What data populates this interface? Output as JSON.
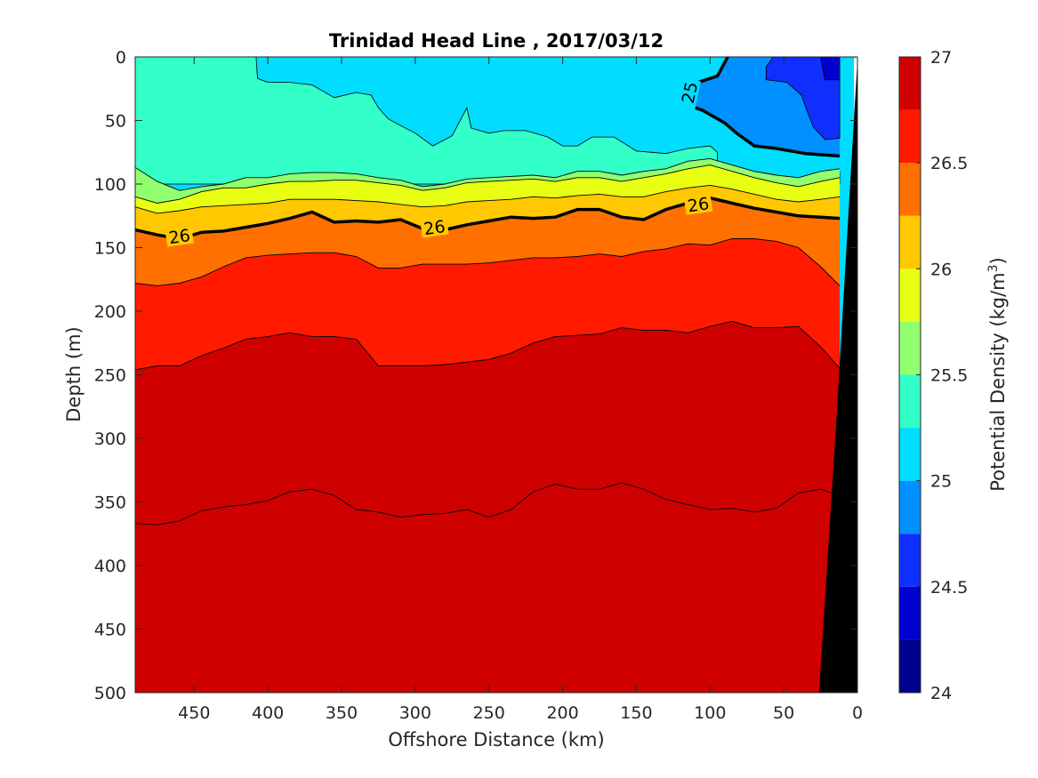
{
  "chart_data": {
    "type": "contour",
    "title": "Trinidad Head Line , 2017/03/12",
    "xlabel": "Offshore Distance (km)",
    "ylabel": "Depth (m)",
    "xlim": [
      490,
      0
    ],
    "ylim": [
      0,
      500
    ],
    "x_reversed": true,
    "y_reversed": true,
    "xticks": [
      450,
      400,
      350,
      300,
      250,
      200,
      150,
      100,
      50,
      0
    ],
    "yticks": [
      0,
      50,
      100,
      150,
      200,
      250,
      300,
      350,
      400,
      450,
      500
    ],
    "colorbar": {
      "label": "Potential Density (kg/m",
      "label_superscript": "3",
      "label_close": ")",
      "range": [
        24,
        27
      ],
      "ticks": [
        24,
        24.5,
        25,
        25.5,
        26,
        26.5,
        27
      ],
      "tick_labels": [
        "24",
        "24.5",
        "25",
        "25.5",
        "26",
        "26.5",
        "27"
      ],
      "levels": [
        {
          "from": 24.0,
          "to": 24.25,
          "color": "#00008f"
        },
        {
          "from": 24.25,
          "to": 24.5,
          "color": "#0000cf"
        },
        {
          "from": 24.5,
          "to": 24.75,
          "color": "#0f2fff"
        },
        {
          "from": 24.75,
          "to": 25.0,
          "color": "#0090ff"
        },
        {
          "from": 25.0,
          "to": 25.25,
          "color": "#00ddff"
        },
        {
          "from": 25.25,
          "to": 25.5,
          "color": "#33ffc9"
        },
        {
          "from": 25.5,
          "to": 25.75,
          "color": "#90ff70"
        },
        {
          "from": 25.75,
          "to": 26.0,
          "color": "#e8ff14"
        },
        {
          "from": 26.0,
          "to": 26.25,
          "color": "#ffc800"
        },
        {
          "from": 26.25,
          "to": 26.5,
          "color": "#ff7000"
        },
        {
          "from": 26.5,
          "to": 26.75,
          "color": "#ff1a00"
        },
        {
          "from": 26.75,
          "to": 27.0,
          "color": "#cf0000"
        }
      ]
    },
    "isolines": [
      {
        "level": 25.25,
        "x": [
          490,
          475,
          460,
          445,
          430,
          415,
          400,
          385,
          370,
          355,
          340,
          325,
          310,
          295,
          280,
          265,
          250,
          235,
          220,
          205,
          190,
          175,
          160,
          145,
          130,
          115,
          100,
          85,
          70,
          55,
          40,
          25,
          12
        ],
        "y": [
          87,
          98,
          105,
          102,
          100,
          95,
          95,
          92,
          91,
          91,
          92,
          95,
          97,
          102,
          100,
          96,
          95,
          94,
          93,
          95,
          90,
          90,
          93,
          90,
          88,
          82,
          80,
          85,
          90,
          93,
          95,
          90,
          88
        ]
      },
      {
        "level": 25.5,
        "x": [
          490,
          475,
          460,
          445,
          430,
          415,
          400,
          385,
          370,
          355,
          340,
          325,
          310,
          295,
          280,
          265,
          250,
          235,
          220,
          205,
          190,
          175,
          160,
          145,
          130,
          115,
          100,
          85,
          70,
          55,
          40,
          25,
          12
        ],
        "y": [
          110,
          115,
          112,
          106,
          103,
          103,
          100,
          98,
          98,
          97,
          97,
          99,
          101,
          105,
          103,
          99,
          98,
          97,
          96,
          98,
          95,
          95,
          98,
          95,
          92,
          88,
          85,
          90,
          95,
          99,
          102,
          98,
          95
        ]
      },
      {
        "level": 25.75,
        "x": [
          490,
          475,
          460,
          445,
          430,
          415,
          400,
          385,
          370,
          355,
          340,
          325,
          310,
          295,
          280,
          265,
          250,
          235,
          220,
          205,
          190,
          175,
          160,
          145,
          130,
          115,
          100,
          85,
          70,
          55,
          40,
          25,
          12
        ],
        "y": [
          118,
          123,
          121,
          118,
          117,
          116,
          115,
          112,
          112,
          112,
          113,
          114,
          116,
          118,
          117,
          114,
          113,
          112,
          110,
          111,
          109,
          108,
          110,
          110,
          106,
          103,
          101,
          104,
          108,
          112,
          114,
          112,
          110
        ]
      },
      {
        "level": 26.0,
        "x": [
          490,
          475,
          460,
          445,
          430,
          415,
          400,
          385,
          370,
          355,
          340,
          325,
          310,
          295,
          280,
          265,
          250,
          235,
          220,
          205,
          190,
          175,
          160,
          145,
          130,
          115,
          100,
          85,
          70,
          55,
          40,
          25,
          12
        ],
        "y": [
          136,
          140,
          143,
          138,
          137,
          134,
          131,
          127,
          122,
          130,
          129,
          130,
          128,
          135,
          136,
          132,
          129,
          126,
          127,
          126,
          120,
          120,
          126,
          128,
          120,
          115,
          111,
          115,
          119,
          122,
          125,
          126,
          127
        ]
      },
      {
        "level": 26.25,
        "x": [
          490,
          475,
          460,
          445,
          430,
          415,
          400,
          385,
          370,
          355,
          340,
          325,
          310,
          295,
          280,
          265,
          250,
          235,
          220,
          205,
          190,
          175,
          160,
          145,
          130,
          115,
          100,
          85,
          70,
          55,
          40,
          25,
          12
        ],
        "y": [
          178,
          180,
          178,
          173,
          165,
          158,
          156,
          155,
          154,
          154,
          157,
          166,
          166,
          163,
          163,
          163,
          162,
          160,
          158,
          158,
          157,
          155,
          157,
          153,
          151,
          147,
          148,
          143,
          143,
          145,
          150,
          165,
          180
        ]
      },
      {
        "level": 26.5,
        "x": [
          490,
          475,
          460,
          445,
          430,
          415,
          400,
          385,
          370,
          355,
          340,
          325,
          310,
          295,
          280,
          265,
          250,
          235,
          220,
          205,
          190,
          175,
          160,
          145,
          130,
          115,
          100,
          85,
          70,
          55,
          40,
          25,
          12
        ],
        "y": [
          246,
          243,
          243,
          235,
          229,
          222,
          220,
          217,
          220,
          220,
          222,
          243,
          243,
          243,
          242,
          240,
          238,
          233,
          225,
          220,
          219,
          218,
          213,
          215,
          215,
          217,
          212,
          208,
          213,
          213,
          212,
          228,
          245
        ]
      },
      {
        "level": 26.75,
        "x": [
          490,
          475,
          460,
          445,
          430,
          415,
          400,
          385,
          370,
          355,
          340,
          325,
          310,
          295,
          280,
          265,
          250,
          235,
          220,
          205,
          190,
          175,
          160,
          145,
          130,
          115,
          100,
          85,
          70,
          55,
          40,
          25,
          12
        ],
        "y": [
          367,
          368,
          365,
          357,
          354,
          352,
          349,
          342,
          340,
          345,
          356,
          358,
          362,
          360,
          359,
          356,
          362,
          356,
          342,
          336,
          340,
          340,
          335,
          340,
          348,
          352,
          356,
          355,
          358,
          355,
          343,
          340,
          345
        ]
      }
    ],
    "labeled_contours": [
      {
        "label": "26",
        "x": 460,
        "y": 141
      },
      {
        "label": "26",
        "x": 287,
        "y": 134
      },
      {
        "label": "26",
        "x": 108,
        "y": 116
      },
      {
        "label": "25",
        "x": 114,
        "y": 28
      }
    ],
    "bathymetry_color": "#000000"
  }
}
